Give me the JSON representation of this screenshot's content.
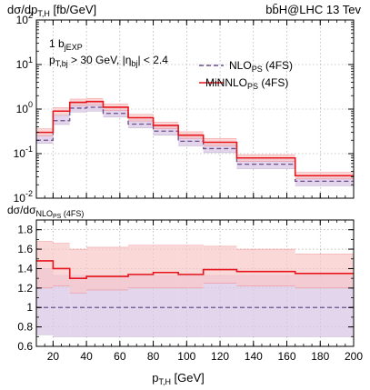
{
  "header": {
    "title_left": "dσ/dp",
    "title_left_sub": "T,H",
    "title_left_unit": " [fb/GeV]",
    "title_right": "bb̄H@LHC 13 Tev"
  },
  "annotations": {
    "line1_main": "1 b",
    "line1_sub": "jEXP",
    "line2_a": "p",
    "line2_a_sub": "T,bj",
    "line2_b": " > 30 GeV, |η",
    "line2_b_sub": "bj",
    "line2_c": "| < 2.4"
  },
  "legend": {
    "nlo_main": "NLO",
    "nlo_sub": "PS",
    "nlo_tail": " (4FS)",
    "minnlo_main": "MiNNLO",
    "minnlo_sub": "PS",
    "minnlo_tail": " (4FS)"
  },
  "ratio_label": {
    "main": "dσ/dσ",
    "sub": "NLO",
    "subsub": "PS",
    "tail": " (4FS)"
  },
  "xlabel": {
    "main": "p",
    "sub": "T,H",
    "tail": " [GeV]"
  },
  "colors": {
    "nlo_line": "#6b4f8a",
    "nlo_band": "#d9c8e6",
    "minnlo_line": "#e8141c",
    "minnlo_band": "#f8c8c8"
  },
  "chart_data": [
    {
      "type": "line",
      "panel": "main",
      "scale": "log",
      "xlim": [
        10,
        200
      ],
      "ylim": [
        0.01,
        100
      ],
      "x_ticks": [
        20,
        40,
        60,
        80,
        100,
        120,
        140,
        160,
        180,
        200
      ],
      "y_ticks": [
        {
          "v": 0.01,
          "m": "10",
          "e": "-2"
        },
        {
          "v": 0.1,
          "m": "10",
          "e": "-1"
        },
        {
          "v": 1,
          "m": "10",
          "e": "0"
        },
        {
          "v": 10,
          "m": "10",
          "e": "1"
        },
        {
          "v": 100,
          "m": "10",
          "e": "2"
        }
      ],
      "grid": true,
      "bin_edges": [
        10,
        20,
        30,
        40,
        50,
        65,
        80,
        95,
        110,
        130,
        165,
        200
      ],
      "series": [
        {
          "name": "NLO_PS (4FS)",
          "style": "dashed",
          "values": [
            0.2,
            0.55,
            1.05,
            1.1,
            0.8,
            0.46,
            0.32,
            0.19,
            0.13,
            0.058,
            0.024
          ],
          "band_low": [
            0.17,
            0.45,
            0.86,
            0.9,
            0.66,
            0.38,
            0.26,
            0.15,
            0.105,
            0.046,
            0.019
          ],
          "band_high": [
            0.26,
            0.72,
            1.35,
            1.4,
            1.02,
            0.59,
            0.41,
            0.24,
            0.165,
            0.074,
            0.031
          ]
        },
        {
          "name": "MiNNLO_PS (4FS)",
          "style": "solid",
          "values": [
            0.3,
            0.9,
            1.42,
            1.48,
            1.1,
            0.64,
            0.43,
            0.26,
            0.18,
            0.08,
            0.032
          ],
          "band_low": [
            0.25,
            0.75,
            1.2,
            1.25,
            0.93,
            0.54,
            0.36,
            0.22,
            0.15,
            0.067,
            0.027
          ],
          "band_high": [
            0.36,
            1.08,
            1.68,
            1.74,
            1.3,
            0.76,
            0.51,
            0.31,
            0.22,
            0.095,
            0.038
          ]
        }
      ]
    },
    {
      "type": "line",
      "panel": "ratio",
      "scale": "linear",
      "xlim": [
        10,
        200
      ],
      "ylim": [
        0.6,
        1.9
      ],
      "x_ticks": [
        20,
        40,
        60,
        80,
        100,
        120,
        140,
        160,
        180,
        200
      ],
      "y_ticks": [
        0.6,
        0.8,
        1,
        1.2,
        1.4,
        1.6,
        1.8
      ],
      "grid": true,
      "bin_edges": [
        10,
        20,
        30,
        40,
        50,
        65,
        80,
        95,
        110,
        130,
        165,
        200
      ],
      "series": [
        {
          "name": "NLO_PS (4FS)",
          "style": "dashed",
          "values": [
            1,
            1,
            1,
            1,
            1,
            1,
            1,
            1,
            1,
            1,
            1
          ],
          "band_low": [
            0.72,
            0.7,
            0.7,
            0.7,
            0.7,
            0.7,
            0.7,
            0.7,
            0.7,
            0.7,
            0.7
          ],
          "band_high": [
            1.4,
            1.33,
            1.33,
            1.33,
            1.33,
            1.33,
            1.33,
            1.33,
            1.33,
            1.33,
            1.33
          ]
        },
        {
          "name": "MiNNLO_PS (4FS)",
          "style": "solid",
          "values": [
            1.48,
            1.4,
            1.3,
            1.32,
            1.32,
            1.34,
            1.36,
            1.34,
            1.39,
            1.37,
            1.35
          ],
          "band_low": [
            1.2,
            1.22,
            1.15,
            1.18,
            1.18,
            1.2,
            1.2,
            1.2,
            1.25,
            1.22,
            1.2
          ],
          "band_high": [
            1.68,
            1.66,
            1.6,
            1.62,
            1.62,
            1.64,
            1.64,
            1.64,
            1.63,
            1.6,
            1.55
          ]
        }
      ]
    }
  ]
}
